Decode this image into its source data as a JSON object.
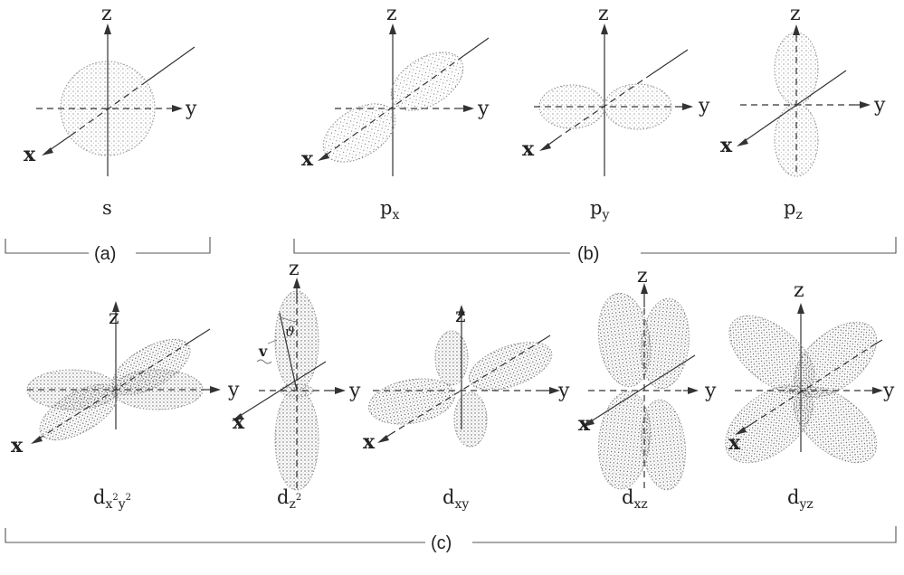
{
  "axis_labels": {
    "x": "x",
    "y": "y",
    "z": "z"
  },
  "orbitals": {
    "s": {
      "main": "s"
    },
    "px": {
      "main": "p",
      "sub": "x"
    },
    "py": {
      "main": "p",
      "sub": "y"
    },
    "pz": {
      "main": "p",
      "sub": "z"
    },
    "dx2y2": {
      "main": "d",
      "sub_a": "x",
      "sup_a": "2",
      "sub_b": "y",
      "sup_b": "2"
    },
    "dz2": {
      "main": "d",
      "sub": "z",
      "sup": "2"
    },
    "dxy": {
      "main": "d",
      "sub": "xy"
    },
    "dxz": {
      "main": "d",
      "sub": "xz"
    },
    "dyz": {
      "main": "d",
      "sub": "yz"
    }
  },
  "groups": {
    "a": "(a)",
    "b": "(b)",
    "c": "(c)"
  },
  "annotations": {
    "v_label": "v",
    "theta_label": "ϑ"
  }
}
